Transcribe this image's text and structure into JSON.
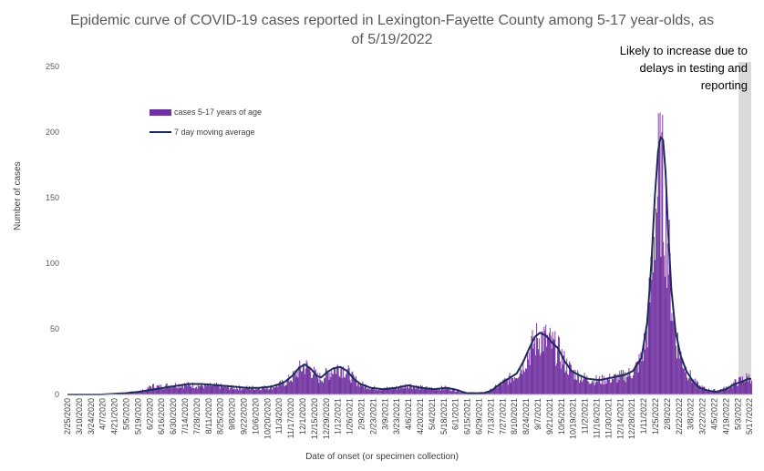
{
  "chart_data": {
    "type": "bar",
    "title_line1": "Epidemic curve of COVID-19 cases reported in Lexington-Fayette County among 5-17 year-olds, as",
    "title_line2": "of 5/19/2022",
    "xlabel": "Date of onset (or specimen collection)",
    "ylabel": "Number of cases",
    "ylim": [
      0,
      250
    ],
    "yticks": [
      "0",
      "50",
      "100",
      "150",
      "200",
      "250"
    ],
    "annotation": [
      "Likely to increase due to",
      "delays in testing and",
      "reporting"
    ],
    "legend": {
      "placement": "top-left",
      "bar_label": "cases 5-17 years of age",
      "line_label": "7 day moving average"
    },
    "colors": {
      "bars": "#7030A0",
      "line": "#1F2A5C",
      "shade": "#D9D9D9",
      "axis": "#BFBFBF"
    },
    "x_tick_labels": [
      "2/25/2020",
      "3/10/2020",
      "3/24/2020",
      "4/7/2020",
      "4/21/2020",
      "5/5/2020",
      "5/19/2020",
      "6/2/2020",
      "6/16/2020",
      "6/30/2020",
      "7/14/2020",
      "7/28/2020",
      "8/11/2020",
      "8/25/2020",
      "9/8/2020",
      "9/22/2020",
      "10/6/2020",
      "10/20/2020",
      "11/3/2020",
      "11/17/2020",
      "12/1/2020",
      "12/15/2020",
      "12/29/2020",
      "1/12/2021",
      "1/26/2021",
      "2/9/2021",
      "2/23/2021",
      "3/9/2021",
      "3/23/2021",
      "4/6/2021",
      "4/20/2021",
      "5/4/2021",
      "5/18/2021",
      "6/1/2021",
      "6/15/2021",
      "6/29/2021",
      "7/13/2021",
      "7/27/2021",
      "8/10/2021",
      "8/24/2021",
      "9/7/2021",
      "9/21/2021",
      "10/5/2021",
      "10/19/2021",
      "11/2/2021",
      "11/16/2021",
      "11/30/2021",
      "12/14/2021",
      "12/28/2021",
      "1/11/2022",
      "1/25/2022",
      "2/8/2022",
      "2/22/2022",
      "3/8/2022",
      "3/22/2022",
      "4/5/2022",
      "4/19/2022",
      "5/3/2022",
      "5/17/2022"
    ],
    "shaded_region": {
      "from": "5/4/2022",
      "to": "5/19/2022"
    },
    "moving_average_points": [
      [
        0,
        0
      ],
      [
        40,
        0
      ],
      [
        70,
        1
      ],
      [
        85,
        2
      ],
      [
        105,
        4
      ],
      [
        125,
        6
      ],
      [
        145,
        8
      ],
      [
        160,
        8
      ],
      [
        180,
        7
      ],
      [
        200,
        6
      ],
      [
        215,
        5
      ],
      [
        230,
        5
      ],
      [
        245,
        6
      ],
      [
        260,
        9
      ],
      [
        270,
        14
      ],
      [
        278,
        20
      ],
      [
        285,
        23
      ],
      [
        292,
        20
      ],
      [
        300,
        14
      ],
      [
        305,
        13
      ],
      [
        312,
        17
      ],
      [
        320,
        20
      ],
      [
        328,
        21
      ],
      [
        336,
        18
      ],
      [
        344,
        12
      ],
      [
        352,
        8
      ],
      [
        365,
        5
      ],
      [
        380,
        4
      ],
      [
        395,
        5
      ],
      [
        410,
        7
      ],
      [
        425,
        5
      ],
      [
        440,
        4
      ],
      [
        455,
        5
      ],
      [
        465,
        4
      ],
      [
        480,
        1
      ],
      [
        500,
        1
      ],
      [
        510,
        3
      ],
      [
        520,
        8
      ],
      [
        530,
        12
      ],
      [
        540,
        16
      ],
      [
        548,
        25
      ],
      [
        555,
        35
      ],
      [
        562,
        44
      ],
      [
        568,
        47
      ],
      [
        575,
        45
      ],
      [
        582,
        40
      ],
      [
        590,
        35
      ],
      [
        598,
        25
      ],
      [
        606,
        18
      ],
      [
        614,
        15
      ],
      [
        625,
        12
      ],
      [
        640,
        11
      ],
      [
        655,
        13
      ],
      [
        670,
        15
      ],
      [
        680,
        18
      ],
      [
        690,
        28
      ],
      [
        697,
        55
      ],
      [
        702,
        100
      ],
      [
        706,
        150
      ],
      [
        710,
        185
      ],
      [
        713,
        196
      ],
      [
        716,
        194
      ],
      [
        719,
        170
      ],
      [
        722,
        125
      ],
      [
        726,
        80
      ],
      [
        731,
        48
      ],
      [
        737,
        30
      ],
      [
        744,
        18
      ],
      [
        752,
        10
      ],
      [
        760,
        5
      ],
      [
        770,
        3
      ],
      [
        780,
        2
      ],
      [
        792,
        4
      ],
      [
        802,
        8
      ],
      [
        812,
        10
      ],
      [
        818,
        12
      ],
      [
        822,
        12
      ]
    ],
    "bar_peaks": [
      [
        0,
        0
      ],
      [
        40,
        0
      ],
      [
        55,
        1
      ],
      [
        70,
        2
      ],
      [
        85,
        3
      ],
      [
        95,
        5
      ],
      [
        100,
        9
      ],
      [
        110,
        8
      ],
      [
        125,
        10
      ],
      [
        145,
        10
      ],
      [
        165,
        9
      ],
      [
        180,
        9
      ],
      [
        200,
        7
      ],
      [
        215,
        7
      ],
      [
        230,
        7
      ],
      [
        245,
        8
      ],
      [
        260,
        12
      ],
      [
        270,
        18
      ],
      [
        278,
        26
      ],
      [
        285,
        30
      ],
      [
        292,
        26
      ],
      [
        300,
        18
      ],
      [
        305,
        17
      ],
      [
        312,
        22
      ],
      [
        320,
        27
      ],
      [
        328,
        29
      ],
      [
        336,
        24
      ],
      [
        344,
        16
      ],
      [
        352,
        11
      ],
      [
        365,
        7
      ],
      [
        380,
        6
      ],
      [
        395,
        7
      ],
      [
        410,
        10
      ],
      [
        425,
        7
      ],
      [
        440,
        6
      ],
      [
        455,
        7
      ],
      [
        465,
        5
      ],
      [
        480,
        2
      ],
      [
        500,
        2
      ],
      [
        510,
        5
      ],
      [
        520,
        11
      ],
      [
        530,
        16
      ],
      [
        540,
        22
      ],
      [
        548,
        33
      ],
      [
        555,
        45
      ],
      [
        562,
        56
      ],
      [
        568,
        61
      ],
      [
        575,
        57
      ],
      [
        582,
        52
      ],
      [
        590,
        45
      ],
      [
        598,
        33
      ],
      [
        606,
        24
      ],
      [
        614,
        20
      ],
      [
        625,
        16
      ],
      [
        640,
        15
      ],
      [
        655,
        17
      ],
      [
        670,
        20
      ],
      [
        680,
        24
      ],
      [
        690,
        38
      ],
      [
        697,
        72
      ],
      [
        702,
        130
      ],
      [
        706,
        190
      ],
      [
        710,
        222
      ],
      [
        713,
        224
      ],
      [
        716,
        212
      ],
      [
        719,
        188
      ],
      [
        722,
        150
      ],
      [
        726,
        100
      ],
      [
        731,
        62
      ],
      [
        737,
        40
      ],
      [
        744,
        25
      ],
      [
        752,
        14
      ],
      [
        760,
        8
      ],
      [
        770,
        5
      ],
      [
        780,
        4
      ],
      [
        792,
        7
      ],
      [
        802,
        12
      ],
      [
        812,
        16
      ],
      [
        818,
        18
      ],
      [
        822,
        18
      ]
    ]
  }
}
